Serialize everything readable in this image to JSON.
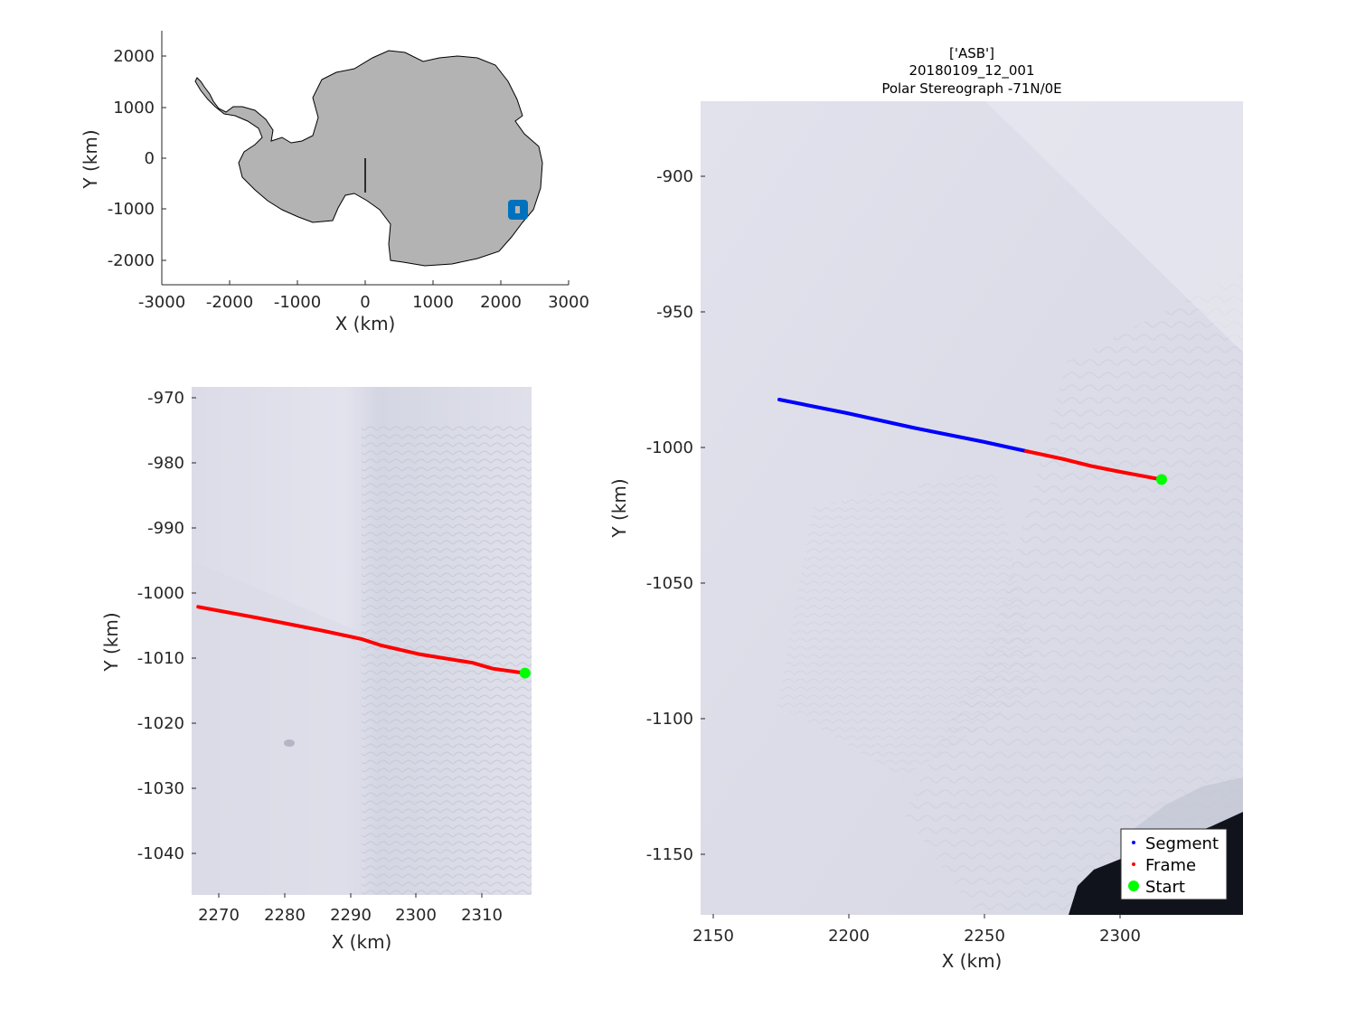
{
  "overview": {
    "xlabel": "X (km)",
    "ylabel": "Y (km)",
    "xticks": [
      "-3000",
      "-2000",
      "-1000",
      "0",
      "1000",
      "2000",
      "3000"
    ],
    "yticks": [
      "2000",
      "1000",
      "0",
      "-1000",
      "-2000"
    ],
    "land_color": "#b3b3b3",
    "marker_color": "#0072bd"
  },
  "zoom": {
    "xlabel": "X (km)",
    "ylabel": "Y (km)",
    "xticks": [
      "2270",
      "2280",
      "2290",
      "2300",
      "2310"
    ],
    "yticks": [
      "-970",
      "-980",
      "-990",
      "-1000",
      "-1010",
      "-1020",
      "-1030",
      "-1040"
    ]
  },
  "main": {
    "title_line1": "['ASB']",
    "title_line2": "20180109_12_001",
    "title_line3": "Polar Stereograph -71N/0E",
    "xlabel": "X (km)",
    "ylabel": "Y (km)",
    "xticks": [
      "2150",
      "2200",
      "2250",
      "2300"
    ],
    "yticks": [
      "-900",
      "-950",
      "-1000",
      "-1050",
      "-1100",
      "-1150"
    ],
    "legend": [
      {
        "label": "Segment",
        "color": "#0000ff"
      },
      {
        "label": "Frame",
        "color": "#ff0000"
      },
      {
        "label": "Start",
        "color": "#00ff00"
      }
    ]
  },
  "chart_data": [
    {
      "type": "scatter",
      "xlabel": "X (km)",
      "ylabel": "Y (km)",
      "xlim": [
        -3000,
        3000
      ],
      "ylim": [
        -2500,
        2500
      ],
      "series": [
        {
          "name": "",
          "x": [
            2250
          ],
          "y": [
            -1000
          ]
        }
      ]
    },
    {
      "type": "line",
      "xlabel": "X (km)",
      "ylabel": "Y (km)",
      "xlim": [
        2265,
        2317
      ],
      "ylim": [
        -1047,
        -968
      ],
      "series": [
        {
          "name": "Frame",
          "x": [
            2266,
            2275,
            2285,
            2291,
            2294,
            2300,
            2308,
            2311,
            2316
          ],
          "y": [
            -1002.2,
            -1003.9,
            -1005.9,
            -1007.2,
            -1008.2,
            -1009.6,
            -1010.9,
            -1011.8,
            -1012.5
          ]
        },
        {
          "name": "Start",
          "x": [
            2316
          ],
          "y": [
            -1012.5
          ]
        }
      ]
    },
    {
      "type": "line",
      "xlabel": "X (km)",
      "ylabel": "Y (km)",
      "xlim": [
        2146,
        2346
      ],
      "ylim": [
        -1173,
        -873
      ],
      "series": [
        {
          "name": "Segment",
          "x": [
            2175,
            2200,
            2225,
            2250,
            2266
          ],
          "y": [
            -983,
            -988,
            -993.5,
            -998.5,
            -1002
          ]
        },
        {
          "name": "Frame",
          "x": [
            2266,
            2280,
            2290,
            2300,
            2316
          ],
          "y": [
            -1002,
            -1005,
            -1007.5,
            -1009.5,
            -1012.5
          ]
        },
        {
          "name": "Start",
          "x": [
            2316
          ],
          "y": [
            -1012.5
          ]
        }
      ]
    }
  ]
}
